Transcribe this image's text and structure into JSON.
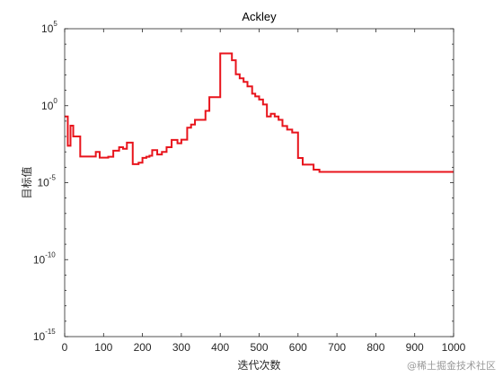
{
  "chart_data": {
    "type": "line",
    "title": "Ackley",
    "xlabel": "迭代次数",
    "ylabel": "目标值",
    "xlim": [
      0,
      1000
    ],
    "ylim": [
      1e-15,
      100000.0
    ],
    "yscale": "log",
    "grid": false,
    "xticks": [
      0,
      100,
      200,
      300,
      400,
      500,
      600,
      700,
      800,
      900,
      1000
    ],
    "xtick_labels": [
      "0",
      "100",
      "200",
      "300",
      "400",
      "500",
      "600",
      "700",
      "800",
      "900",
      "1000"
    ],
    "yticks": [
      {
        "value": 100000.0,
        "base": "10",
        "exp": "5"
      },
      {
        "value": 1.0,
        "base": "10",
        "exp": "0"
      },
      {
        "value": 1e-05,
        "base": "10",
        "exp": "-5"
      },
      {
        "value": 1e-10,
        "base": "10",
        "exp": "-10"
      },
      {
        "value": 1e-15,
        "base": "10",
        "exp": "-15"
      }
    ],
    "series": [
      {
        "color": "#e8141c",
        "step": true,
        "x": [
          0,
          8,
          15,
          22,
          40,
          60,
          80,
          90,
          100,
          112,
          125,
          140,
          150,
          160,
          175,
          190,
          200,
          210,
          218,
          225,
          238,
          250,
          262,
          275,
          290,
          300,
          315,
          325,
          335,
          350,
          362,
          372,
          382,
          400,
          410,
          420,
          430,
          440,
          450,
          460,
          470,
          482,
          490,
          500,
          510,
          520,
          530,
          540,
          550,
          560,
          572,
          585,
          600,
          612,
          625,
          640,
          655,
          670,
          690,
          1000
        ],
        "y": [
          0.2,
          0.0025,
          0.05,
          0.01,
          0.0005,
          0.0005,
          0.001,
          0.00042,
          0.00042,
          0.00048,
          0.0012,
          0.002,
          0.0016,
          0.004,
          0.00016,
          0.0002,
          0.00041,
          0.00048,
          0.00056,
          0.0013,
          0.00068,
          0.001,
          0.002,
          0.006,
          0.0036,
          0.0062,
          0.037,
          0.06,
          0.12,
          0.12,
          0.46,
          3.6,
          3.6,
          2500.0,
          2500.0,
          2500.0,
          900.0,
          110.0,
          60.0,
          35.0,
          18.0,
          6.0,
          4.0,
          2.5,
          1.2,
          0.2,
          0.3,
          0.2,
          0.12,
          0.048,
          0.028,
          0.018,
          0.0004,
          0.00015,
          0.00015,
          7e-05,
          5e-05,
          5e-05,
          5e-05,
          5e-05
        ]
      }
    ]
  },
  "watermark": "@稀土掘金技术社区"
}
